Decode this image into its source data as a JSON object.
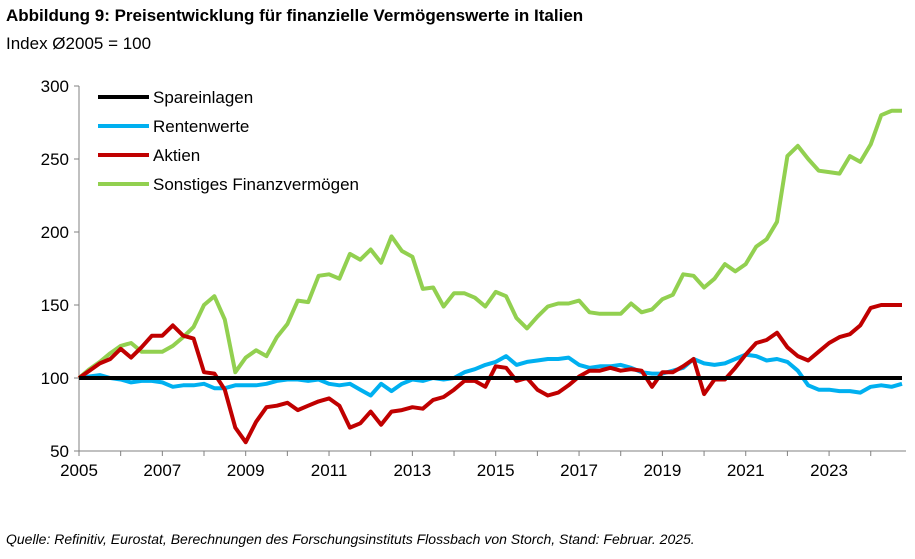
{
  "title": "Abbildung 9: Preisentwicklung für finanzielle Vermögenswerte in Italien",
  "subtitle": "Index Ø2005 = 100",
  "source": "Quelle: Refinitiv, Eurostat, Berechnungen des Forschungsinstituts Flossbach von Storch, Stand: Februar. 2025.",
  "chart_data": {
    "type": "line",
    "title": "Abbildung 9: Preisentwicklung für finanzielle Vermögenswerte in Italien",
    "ylabel": "Index Ø2005 = 100",
    "xlabel": "",
    "xlim": [
      2005,
      2024.75
    ],
    "ylim": [
      50,
      300
    ],
    "x_ticks": [
      "2005",
      "2007",
      "2009",
      "2011",
      "2013",
      "2015",
      "2017",
      "2019",
      "2021",
      "2023"
    ],
    "y_ticks": [
      "300",
      "250",
      "200",
      "150",
      "100",
      "50"
    ],
    "legend_position": "top-left",
    "series": [
      {
        "name": "Spareinlagen",
        "color": "#000000",
        "x": [
          2005,
          2024.75
        ],
        "values": [
          100,
          100
        ]
      },
      {
        "name": "Rentenwerte",
        "color": "#00b0f0",
        "x": [
          2005,
          2005.25,
          2005.5,
          2005.75,
          2006,
          2006.25,
          2006.5,
          2006.75,
          2007,
          2007.25,
          2007.5,
          2007.75,
          2008,
          2008.25,
          2008.5,
          2008.75,
          2009,
          2009.25,
          2009.5,
          2009.75,
          2010,
          2010.25,
          2010.5,
          2010.75,
          2011,
          2011.25,
          2011.5,
          2011.75,
          2012,
          2012.25,
          2012.5,
          2012.75,
          2013,
          2013.25,
          2013.5,
          2013.75,
          2014,
          2014.25,
          2014.5,
          2014.75,
          2015,
          2015.25,
          2015.5,
          2015.75,
          2016,
          2016.25,
          2016.5,
          2016.75,
          2017,
          2017.25,
          2017.5,
          2017.75,
          2018,
          2018.25,
          2018.5,
          2018.75,
          2019,
          2019.25,
          2019.5,
          2019.75,
          2020,
          2020.25,
          2020.5,
          2020.75,
          2021,
          2021.25,
          2021.5,
          2021.75,
          2022,
          2022.25,
          2022.5,
          2022.75,
          2023,
          2023.25,
          2023.5,
          2023.75,
          2024,
          2024.25,
          2024.5,
          2024.75
        ],
        "values": [
          100,
          101,
          102,
          100,
          99,
          97,
          98,
          98,
          97,
          94,
          95,
          95,
          96,
          93,
          93,
          95,
          95,
          95,
          96,
          98,
          99,
          99,
          98,
          99,
          96,
          95,
          96,
          92,
          88,
          96,
          91,
          96,
          99,
          98,
          100,
          99,
          100,
          104,
          106,
          109,
          111,
          115,
          109,
          111,
          112,
          113,
          113,
          114,
          109,
          107,
          108,
          108,
          109,
          107,
          104,
          103,
          103,
          105,
          107,
          113,
          110,
          109,
          110,
          113,
          116,
          115,
          112,
          113,
          111,
          105,
          95,
          92,
          92,
          91,
          91,
          90,
          94,
          95,
          94,
          96
        ]
      },
      {
        "name": "Aktien",
        "color": "#c00000",
        "x": [
          2005,
          2005.25,
          2005.5,
          2005.75,
          2006,
          2006.25,
          2006.5,
          2006.75,
          2007,
          2007.25,
          2007.5,
          2007.75,
          2008,
          2008.25,
          2008.5,
          2008.75,
          2009,
          2009.25,
          2009.5,
          2009.75,
          2010,
          2010.25,
          2010.5,
          2010.75,
          2011,
          2011.25,
          2011.5,
          2011.75,
          2012,
          2012.25,
          2012.5,
          2012.75,
          2013,
          2013.25,
          2013.5,
          2013.75,
          2014,
          2014.25,
          2014.5,
          2014.75,
          2015,
          2015.25,
          2015.5,
          2015.75,
          2016,
          2016.25,
          2016.5,
          2016.75,
          2017,
          2017.25,
          2017.5,
          2017.75,
          2018,
          2018.25,
          2018.5,
          2018.75,
          2019,
          2019.25,
          2019.5,
          2019.75,
          2020,
          2020.25,
          2020.5,
          2020.75,
          2021,
          2021.25,
          2021.5,
          2021.75,
          2022,
          2022.25,
          2022.5,
          2022.75,
          2023,
          2023.25,
          2023.5,
          2023.75,
          2024,
          2024.25,
          2024.5,
          2024.75
        ],
        "values": [
          100,
          105,
          110,
          113,
          120,
          114,
          121,
          129,
          129,
          136,
          129,
          127,
          104,
          103,
          92,
          66,
          56,
          70,
          80,
          81,
          83,
          78,
          81,
          84,
          86,
          81,
          66,
          69,
          77,
          68,
          77,
          78,
          80,
          79,
          85,
          87,
          92,
          98,
          98,
          94,
          108,
          107,
          98,
          100,
          92,
          88,
          90,
          95,
          101,
          105,
          105,
          107,
          105,
          106,
          105,
          94,
          104,
          104,
          108,
          113,
          89,
          99,
          99,
          107,
          116,
          124,
          126,
          131,
          121,
          115,
          112,
          118,
          124,
          128,
          130,
          136,
          148,
          150,
          150,
          150
        ]
      },
      {
        "name": "Sonstiges Finanzvermögen",
        "color": "#92d050",
        "x": [
          2005,
          2005.25,
          2005.5,
          2005.75,
          2006,
          2006.25,
          2006.5,
          2006.75,
          2007,
          2007.25,
          2007.5,
          2007.75,
          2008,
          2008.25,
          2008.5,
          2008.75,
          2009,
          2009.25,
          2009.5,
          2009.75,
          2010,
          2010.25,
          2010.5,
          2010.75,
          2011,
          2011.25,
          2011.5,
          2011.75,
          2012,
          2012.25,
          2012.5,
          2012.75,
          2013,
          2013.25,
          2013.5,
          2013.75,
          2014,
          2014.25,
          2014.5,
          2014.75,
          2015,
          2015.25,
          2015.5,
          2015.75,
          2016,
          2016.25,
          2016.5,
          2016.75,
          2017,
          2017.25,
          2017.5,
          2017.75,
          2018,
          2018.25,
          2018.5,
          2018.75,
          2019,
          2019.25,
          2019.5,
          2019.75,
          2020,
          2020.25,
          2020.5,
          2020.75,
          2021,
          2021.25,
          2021.5,
          2021.75,
          2022,
          2022.25,
          2022.5,
          2022.75,
          2023,
          2023.25,
          2023.5,
          2023.75,
          2024,
          2024.25,
          2024.5,
          2024.75
        ],
        "values": [
          100,
          106,
          111,
          117,
          122,
          124,
          118,
          118,
          118,
          122,
          128,
          135,
          150,
          156,
          140,
          104,
          114,
          119,
          115,
          128,
          137,
          153,
          152,
          170,
          171,
          168,
          185,
          181,
          188,
          179,
          197,
          187,
          183,
          161,
          162,
          149,
          158,
          158,
          155,
          149,
          159,
          156,
          141,
          134,
          142,
          149,
          151,
          151,
          153,
          145,
          144,
          144,
          144,
          151,
          145,
          147,
          154,
          157,
          171,
          170,
          162,
          168,
          178,
          173,
          178,
          190,
          195,
          207,
          252,
          259,
          250,
          242,
          241,
          240,
          252,
          248,
          260,
          280,
          283,
          283
        ]
      }
    ]
  }
}
